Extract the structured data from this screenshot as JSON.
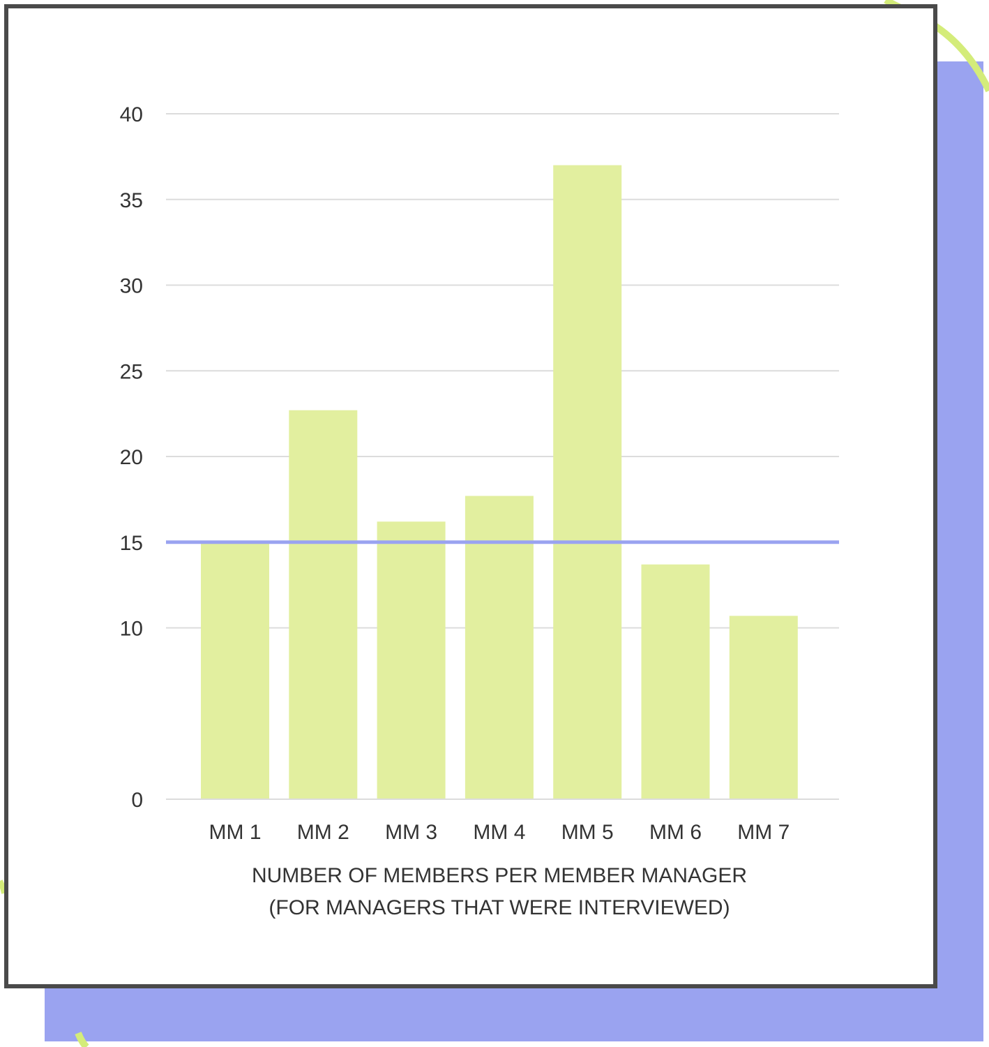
{
  "colors": {
    "bar": "#e2ef9f",
    "reference_line": "#9aa3f0",
    "grid": "#dcdcdc",
    "frame": "#4a4a4a",
    "shadow": "#9aa3f0",
    "deco": "#d4ec7a"
  },
  "chart_data": {
    "type": "bar",
    "title": "",
    "xlabel": "NUMBER OF MEMBERS PER MEMBER MANAGER",
    "xlabel_line2": "(FOR MANAGERS THAT WERE INTERVIEWED)",
    "ylabel": "",
    "categories": [
      "MM 1",
      "MM 2",
      "MM 3",
      "MM 4",
      "MM 5",
      "MM 6",
      "MM 7"
    ],
    "values": [
      15,
      22.7,
      16.2,
      17.7,
      37,
      13.7,
      10.7
    ],
    "y_ticks": [
      0,
      10,
      15,
      20,
      25,
      30,
      35,
      40
    ],
    "ylim": [
      0,
      40
    ],
    "reference_line": 15,
    "grid": true,
    "legend": "none"
  }
}
